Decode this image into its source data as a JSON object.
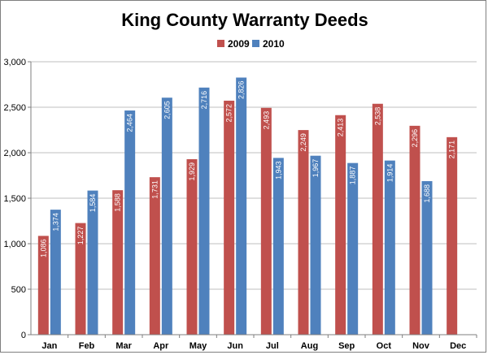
{
  "chart_data": {
    "type": "bar",
    "title": "King County Warranty Deeds",
    "categories": [
      "Jan",
      "Feb",
      "Mar",
      "Apr",
      "May",
      "Jun",
      "Jul",
      "Aug",
      "Sep",
      "Oct",
      "Nov",
      "Dec"
    ],
    "series": [
      {
        "name": "2009",
        "color": "#c0504d",
        "values": [
          1086,
          1227,
          1588,
          1731,
          1929,
          2572,
          2493,
          2249,
          2413,
          2538,
          2296,
          2171
        ],
        "labels": [
          "1,086",
          "1,227",
          "1,588",
          "1,731",
          "1,929",
          "2,572",
          "2,493",
          "2,249",
          "2,413",
          "2,538",
          "2,296",
          "2,171"
        ]
      },
      {
        "name": "2010",
        "color": "#4f81bd",
        "values": [
          1374,
          1584,
          2464,
          2605,
          2716,
          2826,
          1943,
          1967,
          1887,
          1914,
          1688,
          null
        ],
        "labels": [
          "1,374",
          "1,584",
          "2,464",
          "2,605",
          "2,716",
          "2,826",
          "1,943",
          "1,967",
          "1,887",
          "1,914",
          "1,688",
          null
        ]
      }
    ],
    "ylim": [
      0,
      3000
    ],
    "yticks": [
      0,
      500,
      1000,
      1500,
      2000,
      2500,
      3000
    ],
    "ytick_labels": [
      "0",
      "500",
      "1,000",
      "1,500",
      "2,000",
      "2,500",
      "3,000"
    ],
    "grid": true,
    "legend_position": "top-center"
  }
}
